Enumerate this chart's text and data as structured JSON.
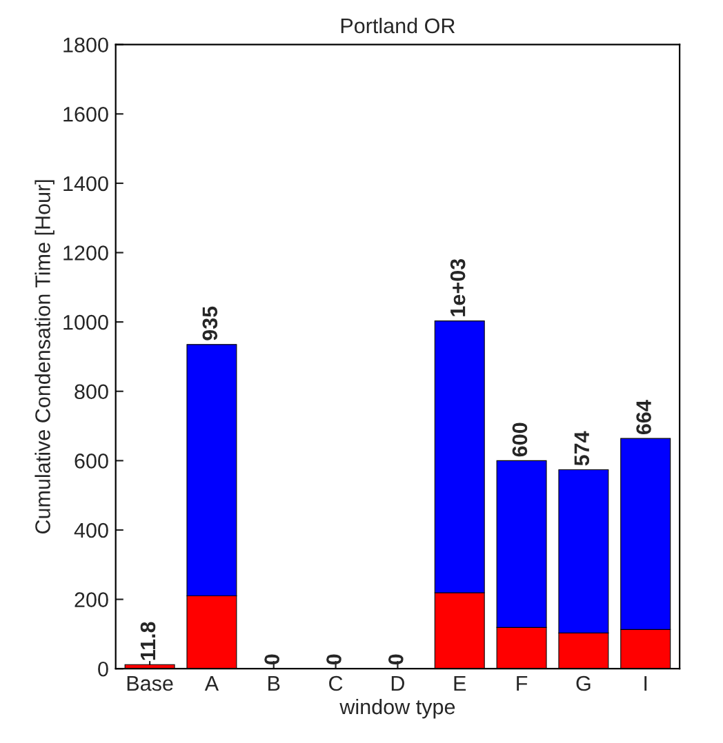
{
  "chart_data": {
    "type": "bar",
    "title": "Portland OR",
    "xlabel": "window type",
    "ylabel": "Cumulative Condensation Time [Hour]",
    "categories": [
      "Base",
      "A",
      "B",
      "C",
      "D",
      "E",
      "F",
      "G",
      "I"
    ],
    "stacked": true,
    "series": [
      {
        "color": "#ff0000",
        "values": [
          11.8,
          210,
          0,
          0,
          0,
          219,
          119,
          103,
          113
        ]
      },
      {
        "color": "#0000ff",
        "values": [
          0,
          725,
          0,
          0,
          0,
          784,
          481,
          471,
          551
        ]
      }
    ],
    "totals": [
      "11.8",
      "935",
      "0",
      "0",
      "0",
      "1e+03",
      "600",
      "574",
      "664"
    ],
    "ylim": [
      0,
      1800
    ],
    "yticks": [
      0,
      200,
      400,
      600,
      800,
      1000,
      1200,
      1400,
      1600,
      1800
    ],
    "grid": false,
    "legend": false
  }
}
